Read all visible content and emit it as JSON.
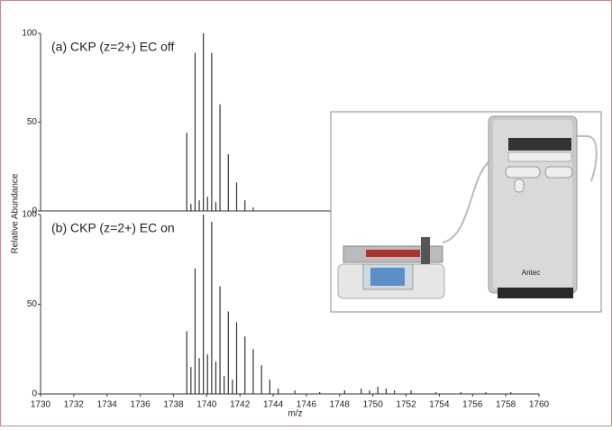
{
  "chart_data": [
    {
      "type": "stick",
      "title": "(a) CKP (z=2+) EC off",
      "ylim": [
        0,
        100
      ],
      "yticks": [
        0,
        50,
        100
      ],
      "xlim": [
        1730,
        1760
      ],
      "color": "#333333",
      "x": [
        1738.8,
        1739.05,
        1739.3,
        1739.55,
        1739.8,
        1740.05,
        1740.3,
        1740.55,
        1740.8,
        1741.3,
        1741.8,
        1742.3,
        1742.8
      ],
      "values": [
        44,
        4,
        89,
        6,
        100,
        8,
        89,
        5,
        60,
        32,
        16,
        6,
        2
      ]
    },
    {
      "type": "stick",
      "title": "(b) CKP (z=2+) EC on",
      "ylim": [
        0,
        100
      ],
      "yticks": [
        0,
        50,
        100
      ],
      "xlim": [
        1730,
        1760
      ],
      "xticks": [
        1730,
        1732,
        1734,
        1736,
        1738,
        1740,
        1742,
        1744,
        1746,
        1748,
        1750,
        1752,
        1754,
        1756,
        1758,
        1760
      ],
      "xlabel": "m/z",
      "ylabel": "Relative Abundance",
      "color": "#333333",
      "x": [
        1738.8,
        1739.05,
        1739.3,
        1739.55,
        1739.8,
        1740.05,
        1740.3,
        1740.55,
        1740.8,
        1741.05,
        1741.3,
        1741.55,
        1741.8,
        1742.3,
        1742.8,
        1743.3,
        1743.8,
        1744.3,
        1745.3,
        1746.8,
        1748.3,
        1749.3,
        1749.8,
        1750.3,
        1750.8,
        1751.3,
        1752.3,
        1753.8,
        1755.3,
        1756.8,
        1758.3
      ],
      "values": [
        35,
        15,
        70,
        20,
        100,
        22,
        96,
        18,
        60,
        10,
        46,
        8,
        40,
        32,
        25,
        16,
        8,
        3,
        2,
        1,
        2,
        3,
        2,
        4,
        3,
        2,
        2,
        1,
        1,
        1,
        1
      ]
    }
  ],
  "inset": {
    "brand": "Antec"
  }
}
